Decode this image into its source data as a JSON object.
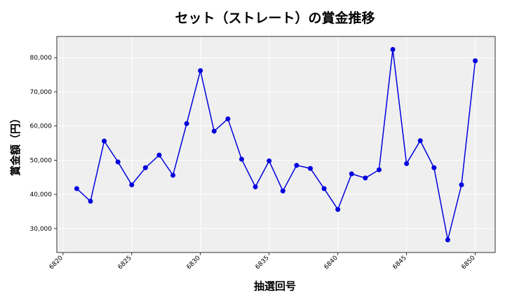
{
  "chart_data": {
    "type": "line",
    "title": "セット（ストレート）の賞金推移",
    "xlabel": "抽選回号",
    "ylabel": "賞金額（円）",
    "x": [
      6821,
      6822,
      6823,
      6824,
      6825,
      6826,
      6827,
      6828,
      6829,
      6830,
      6831,
      6832,
      6833,
      6834,
      6835,
      6836,
      6837,
      6838,
      6839,
      6840,
      6841,
      6842,
      6843,
      6844,
      6845,
      6846,
      6847,
      6848,
      6849,
      6850
    ],
    "series": [
      {
        "values": [
          41700,
          38000,
          55600,
          49500,
          42800,
          47800,
          51500,
          45600,
          60700,
          76200,
          58500,
          62100,
          50300,
          42200,
          49800,
          41000,
          48500,
          47600,
          41700,
          35600,
          46000,
          44800,
          47200,
          82400,
          49000,
          55700,
          47800,
          26700,
          42800,
          79100
        ]
      }
    ],
    "xlim": [
      6819.55,
      6851.45
    ],
    "ylim": [
      23000,
      86200
    ],
    "xticks": [
      6820,
      6825,
      6830,
      6835,
      6840,
      6845,
      6850
    ],
    "yticks": [
      30000,
      40000,
      50000,
      60000,
      70000,
      80000
    ],
    "xtick_labels": [
      "6820",
      "6825",
      "6830",
      "6835",
      "6840",
      "6845",
      "6850"
    ],
    "ytick_labels": [
      "30,000",
      "40,000",
      "50,000",
      "60,000",
      "70,000",
      "80,000"
    ],
    "grid": true,
    "colors": {
      "line": "#0000dd",
      "marker": "#0000dd",
      "plot_bg": "#efefef",
      "grid": "#ffffff"
    }
  }
}
